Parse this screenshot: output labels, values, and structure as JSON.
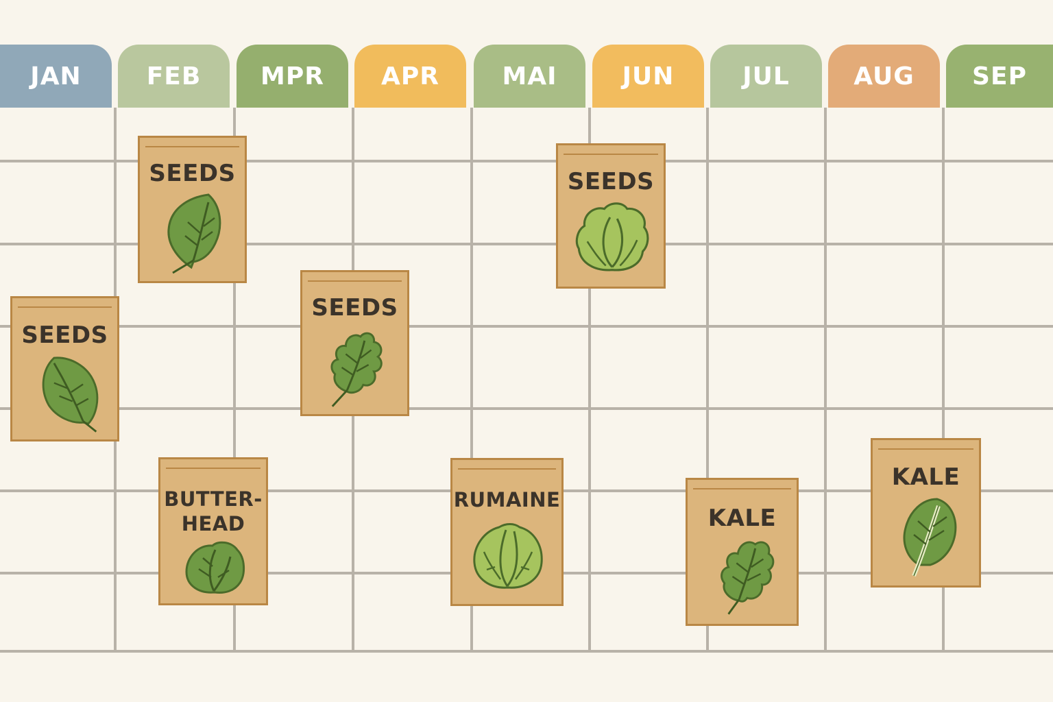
{
  "months": [
    {
      "label": "JAN",
      "color": "#90a8b8"
    },
    {
      "label": "FEB",
      "color": "#b9c79e"
    },
    {
      "label": "MPR",
      "color": "#95af6e"
    },
    {
      "label": "APR",
      "color": "#f1bc5c"
    },
    {
      "label": "MAI",
      "color": "#a9bd86"
    },
    {
      "label": "JUN",
      "color": "#f2bc5e"
    },
    {
      "label": "JUL",
      "color": "#b6c69d"
    },
    {
      "label": "AUG",
      "color": "#e3ab78"
    },
    {
      "label": "SEP",
      "color": "#98b270"
    }
  ],
  "packets": [
    {
      "label": "SEEDS",
      "icon": "spinach-leaf-icon"
    },
    {
      "label": "SEEDS",
      "icon": "spinach-leaf-icon"
    },
    {
      "label": "SEEDS",
      "icon": "oak-leaf-lettuce-icon"
    },
    {
      "label": "SEEDS",
      "icon": "lettuce-head-icon"
    },
    {
      "label": "BUTTER-\nHEAD",
      "icon": "butterhead-lettuce-icon"
    },
    {
      "label": "RUMAINE",
      "icon": "romaine-head-icon"
    },
    {
      "label": "KALE",
      "icon": "kale-leaf-icon"
    },
    {
      "label": "KALE",
      "icon": "chard-leaf-icon"
    }
  ],
  "colors": {
    "background": "#f9f5ec",
    "grid": "#b8b2a8",
    "packet": "#dcb57c",
    "packet_border": "#b98745",
    "leaf_dark": "#6f9a44",
    "leaf_light": "#a6c45e",
    "text": "#3b332a"
  }
}
